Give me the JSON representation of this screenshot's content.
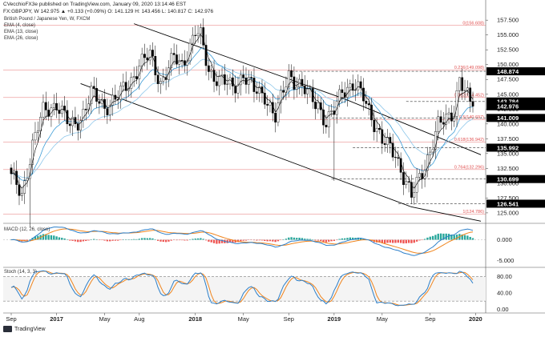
{
  "header": {
    "line1": "CVecchioFX3e published on TradingView.com, January 09, 2020 13:14:46 EST",
    "line2": "FX:GBPJPY, W  142.975  ▲ +0.133 (+0.09%)  O: 141.129  H: 143.456  L: 140.817  C: 142.976"
  },
  "legend": {
    "title": "British Pound / Japanese Yen, W, FXCM",
    "items": [
      "EMA (4, close)",
      "EMA (13, close)",
      "EMA (26, close)"
    ]
  },
  "indicators": {
    "macd_label": "MACD (12, 26, close)",
    "stoch_label": "Stoch (14, 3, 3)"
  },
  "brand": {
    "label": "TradingView"
  },
  "colors": {
    "up": "#ffffff",
    "down": "#000000",
    "ema4": "#000000",
    "ema13": "#3b9bd6",
    "ema26": "#8ec7ea",
    "fib": "#e05050",
    "channel": "#000000",
    "price_badge": "#000000",
    "macd_line": "#2c7fc9",
    "signal_line": "#f0841c",
    "hist_pos": "#26a69a",
    "hist_neg": "#ef5350",
    "stoch_k": "#2c7fc9",
    "stoch_d": "#f0841c"
  },
  "chart_data": {
    "type": "candlestick",
    "symbol": "FX:GBPJPY",
    "interval": "W",
    "x_ticks": [
      "Sep",
      "2017",
      "May",
      "Aug",
      "2018",
      "May",
      "Sep",
      "2019",
      "May",
      "Sep",
      "2020"
    ],
    "x_tick_weeks": [
      0,
      17,
      35,
      48,
      69,
      87,
      104,
      121,
      139,
      157,
      174
    ],
    "y_ticks": [
      125.0,
      127.5,
      130.0,
      132.5,
      135.0,
      137.5,
      140.0,
      142.5,
      145.0,
      147.5,
      150.0,
      152.5,
      155.0,
      157.5
    ],
    "ylim": [
      123.5,
      158.2
    ],
    "fib_levels": [
      {
        "label": "0(156.608)",
        "value": 156.608
      },
      {
        "label": "0.236(149.098)",
        "value": 149.098
      },
      {
        "label": "0.382(144.452)",
        "value": 144.452
      },
      {
        "label": "0.5(140.697)",
        "value": 140.697
      },
      {
        "label": "0.618(136.942)",
        "value": 136.942
      },
      {
        "label": "0.764(132.296)",
        "value": 132.296
      },
      {
        "label": "1(124.786)",
        "value": 124.786
      }
    ],
    "price_badges": [
      148.874,
      143.784,
      142.976,
      141.009,
      135.992,
      130.699,
      126.541
    ],
    "price_badge_labels": [
      "148.874",
      "143.784",
      "142.976",
      "141.009",
      "135.992",
      "130.699",
      "126.541"
    ],
    "anchor_closes": [
      [
        0,
        131.0
      ],
      [
        4,
        128.0
      ],
      [
        8,
        136.5
      ],
      [
        12,
        142.0
      ],
      [
        17,
        143.5
      ],
      [
        22,
        139.5
      ],
      [
        26,
        141.0
      ],
      [
        30,
        145.0
      ],
      [
        35,
        143.0
      ],
      [
        40,
        144.5
      ],
      [
        45,
        147.5
      ],
      [
        48,
        150.0
      ],
      [
        52,
        151.5
      ],
      [
        56,
        147.0
      ],
      [
        61,
        151.0
      ],
      [
        64,
        150.0
      ],
      [
        69,
        155.5
      ],
      [
        71,
        154.5
      ],
      [
        74,
        149.0
      ],
      [
        78,
        147.5
      ],
      [
        83,
        146.0
      ],
      [
        87,
        148.5
      ],
      [
        91,
        145.5
      ],
      [
        95,
        145.0
      ],
      [
        99,
        141.0
      ],
      [
        104,
        148.5
      ],
      [
        108,
        146.5
      ],
      [
        112,
        144.5
      ],
      [
        115,
        143.5
      ],
      [
        118,
        140.0
      ],
      [
        121,
        142.0
      ],
      [
        124,
        146.0
      ],
      [
        128,
        146.5
      ],
      [
        132,
        144.5
      ],
      [
        135,
        141.5
      ],
      [
        139,
        137.0
      ],
      [
        144,
        135.0
      ],
      [
        148,
        130.0
      ],
      [
        150,
        127.5
      ],
      [
        153,
        131.0
      ],
      [
        157,
        135.5
      ],
      [
        160,
        139.5
      ],
      [
        163,
        141.0
      ],
      [
        166,
        142.5
      ],
      [
        168,
        147.5
      ],
      [
        170,
        145.0
      ],
      [
        173,
        142.97
      ]
    ],
    "channel_upper": [
      [
        46,
        156.9
      ],
      [
        125,
        144.2
      ],
      [
        176,
        134.8
      ]
    ],
    "channel_lower": [
      [
        26,
        146.8
      ],
      [
        150,
        126.0
      ],
      [
        176,
        123.6
      ]
    ],
    "dashed_levels": [
      {
        "value": 148.874,
        "from_week": 105
      },
      {
        "value": 143.784,
        "from_week": 148
      },
      {
        "value": 141.009,
        "from_week": 120
      },
      {
        "value": 135.992,
        "from_week": 128
      },
      {
        "value": 130.699,
        "from_week": 120
      },
      {
        "value": 126.541,
        "from_week": 145
      }
    ],
    "macd": {
      "ticks": [
        0.0,
        -5.0
      ],
      "ylim": [
        -6.5,
        3.6
      ]
    },
    "stoch": {
      "ticks": [
        80.0,
        40.0,
        0.0
      ],
      "bands": [
        80.0,
        20.0
      ],
      "ylim": [
        -5,
        100
      ]
    }
  }
}
